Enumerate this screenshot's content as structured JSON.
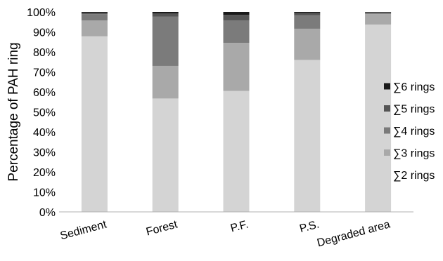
{
  "chart_data": {
    "type": "bar",
    "stacked": "percent",
    "title": "",
    "xlabel": "",
    "ylabel": "Percentage of PAH ring",
    "ylim": [
      0,
      100
    ],
    "y_ticks": [
      "0%",
      "10%",
      "20%",
      "30%",
      "40%",
      "50%",
      "60%",
      "70%",
      "80%",
      "90%",
      "100%"
    ],
    "categories": [
      "Sediment",
      "Forest",
      "P.F.",
      "P.S.",
      "Degraded area"
    ],
    "series": [
      {
        "name": "∑2 rings",
        "color": "#d4d4d4",
        "values": [
          87.8,
          56.7,
          60.5,
          76.0,
          93.7
        ]
      },
      {
        "name": "∑3 rings",
        "color": "#a9a9a9",
        "values": [
          7.9,
          16.3,
          24.0,
          15.6,
          5.2
        ]
      },
      {
        "name": "∑4 rings",
        "color": "#7b7b7b",
        "values": [
          3.2,
          24.6,
          11.3,
          6.7,
          0.7
        ]
      },
      {
        "name": "∑5 rings",
        "color": "#555555",
        "values": [
          0.7,
          1.7,
          2.7,
          1.2,
          0.2
        ]
      },
      {
        "name": "∑6 rings",
        "color": "#1a1a1a",
        "values": [
          0.4,
          0.7,
          1.5,
          0.5,
          0.2
        ]
      }
    ],
    "legend_position": "right",
    "grid": false
  }
}
